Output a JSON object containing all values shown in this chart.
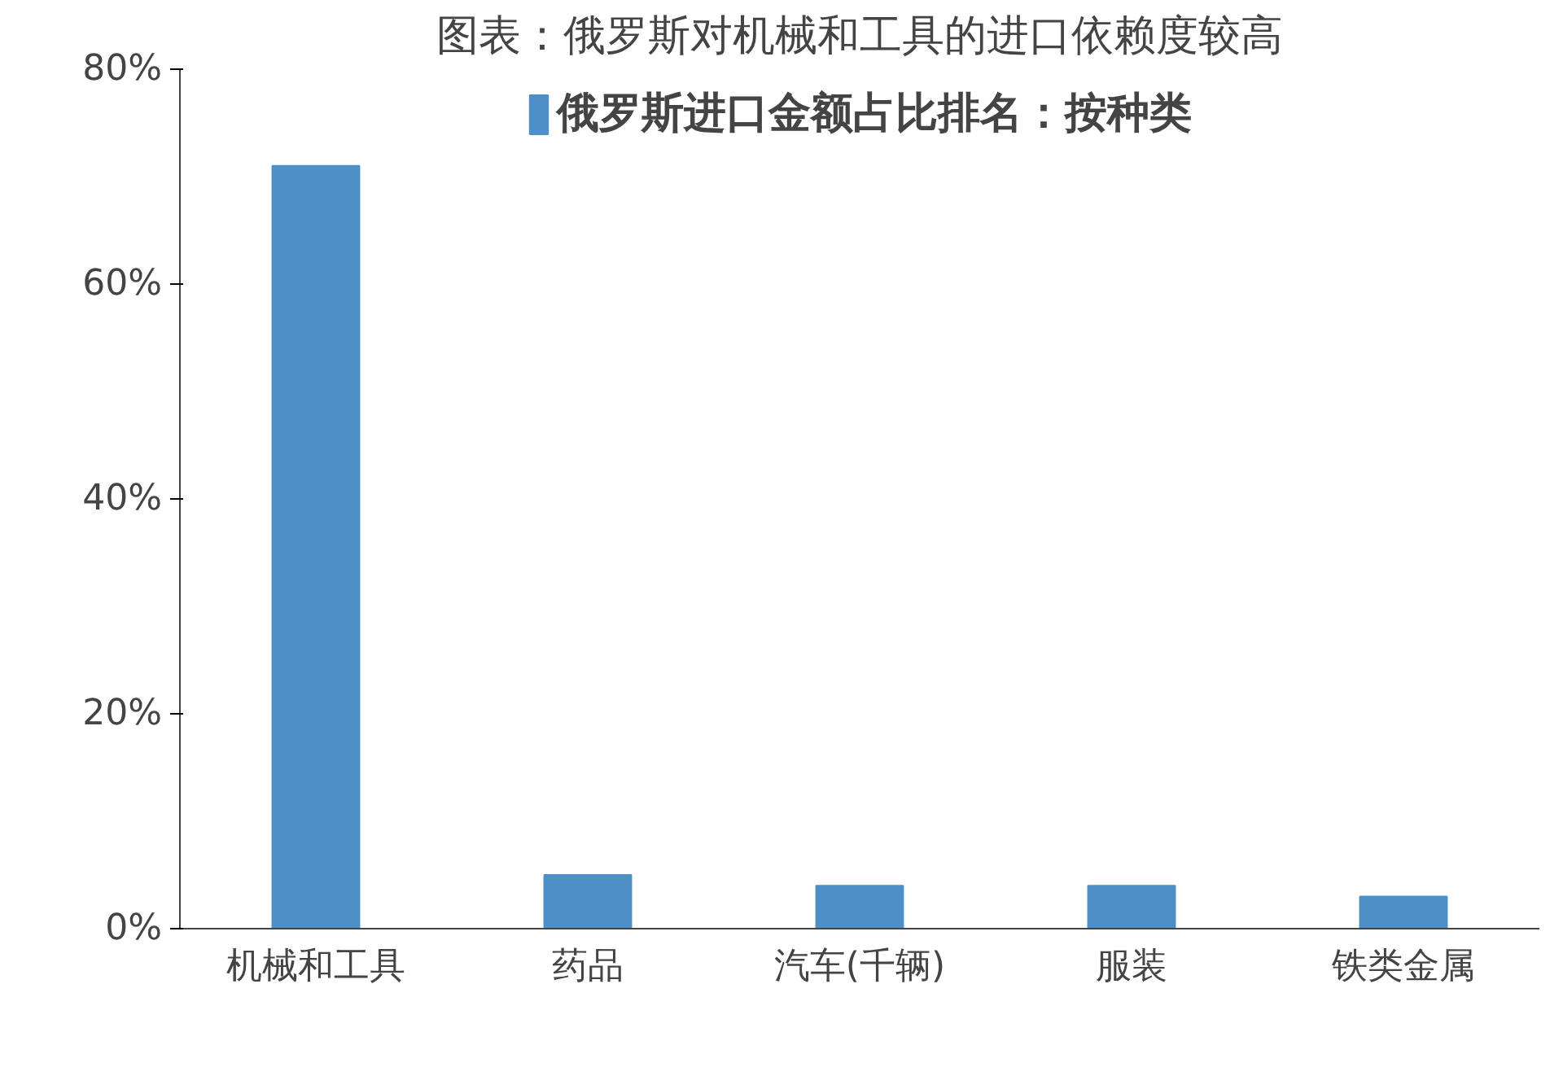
{
  "chart_data": {
    "type": "bar",
    "title": "图表：俄罗斯对机械和工具的进口依赖度较高",
    "categories": [
      "机械和工具",
      "药品",
      "汽车(千辆)",
      "服装",
      "铁类金属"
    ],
    "series": [
      {
        "name": "俄罗斯进口金额占比排名：按种类",
        "color": "#4f8fc8",
        "values": [
          71,
          5,
          4,
          4,
          3
        ]
      }
    ],
    "ylim": [
      0,
      80
    ],
    "yticks": [
      {
        "value": 0,
        "label": "0%"
      },
      {
        "value": 20,
        "label": "20%"
      },
      {
        "value": 40,
        "label": "40%"
      },
      {
        "value": 60,
        "label": "60%"
      },
      {
        "value": 80,
        "label": "80%"
      }
    ],
    "grid": false,
    "legend": "top"
  }
}
